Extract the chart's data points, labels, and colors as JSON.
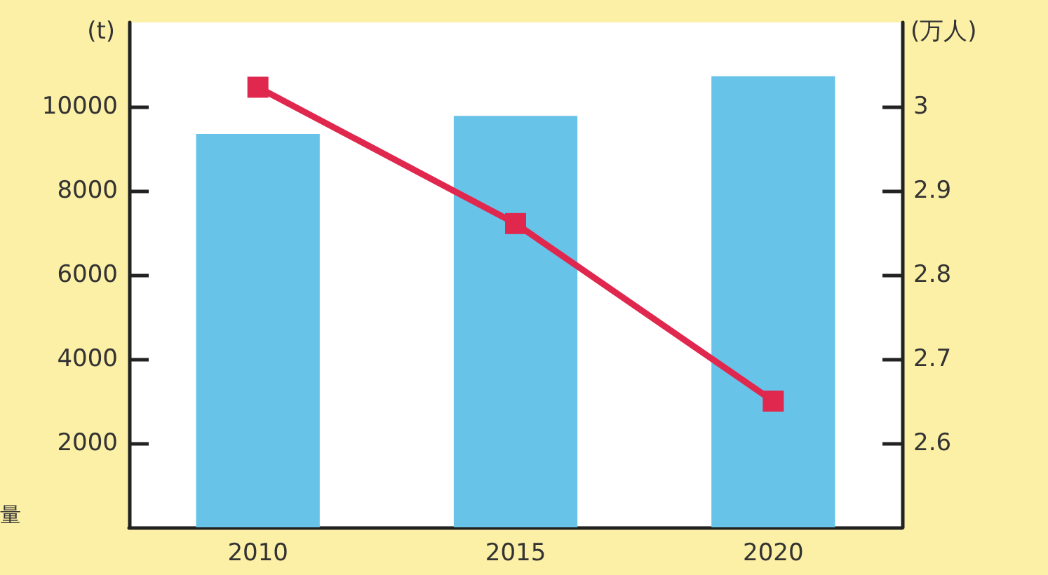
{
  "chart_data": {
    "type": "bar",
    "categories": [
      "2010",
      "2015",
      "2020"
    ],
    "ylabel": "(t)",
    "y2label": "(万人)",
    "ylim": [
      0,
      12000
    ],
    "yticks": [
      2000,
      4000,
      6000,
      8000,
      10000
    ],
    "y2lim": [
      2.5,
      3.1
    ],
    "y2ticks": [
      2.6,
      2.7,
      2.8,
      2.9,
      3
    ],
    "series": [
      {
        "color": "#68c3e8",
        "values": [
          9350,
          9780,
          10720
        ]
      },
      {
        "type": "line",
        "axis": "y2",
        "color": "#e0284f",
        "values": [
          3.023,
          2.861,
          2.65
        ]
      }
    ],
    "annotations": [
      "量"
    ],
    "marker": "square"
  }
}
